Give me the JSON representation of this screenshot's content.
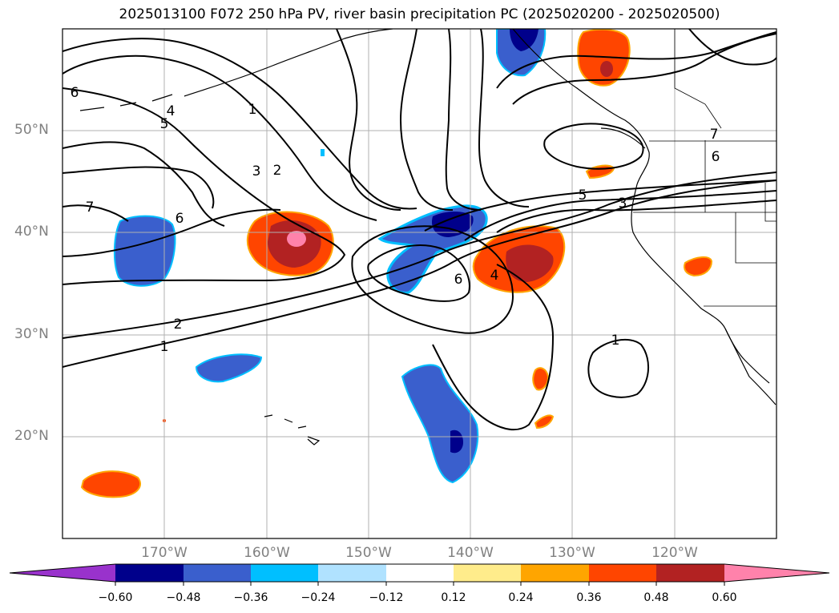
{
  "title": "2025013100 F072 250 hPa PV, river basin precipitation PC (2025020200 - 2025020500)",
  "lat_labels": [
    "50°N",
    "40°N",
    "30°N",
    "20°N"
  ],
  "lon_labels": [
    "170°W",
    "160°W",
    "150°W",
    "140°W",
    "130°W",
    "120°W"
  ],
  "contour_labels": [
    "1",
    "2",
    "3",
    "4",
    "5",
    "6",
    "7",
    "1",
    "2",
    "3",
    "4",
    "5",
    "6",
    "7",
    "6",
    "6",
    "1"
  ],
  "colorbar": {
    "tick_labels": [
      "−0.60",
      "−0.48",
      "−0.36",
      "−0.24",
      "−0.12",
      "0.12",
      "0.24",
      "0.36",
      "0.48",
      "0.60"
    ],
    "colors": [
      "#9932cc",
      "#00008b",
      "#3a5fcd",
      "#00bfff",
      "#b0e2ff",
      "#ffffff",
      "#ffec8b",
      "#ffa500",
      "#ff4500",
      "#b22222",
      "#ff82ab"
    ]
  },
  "map_colors": {
    "grid": "#b0b0b0",
    "contour": "#000000",
    "coast": "#000000"
  }
}
